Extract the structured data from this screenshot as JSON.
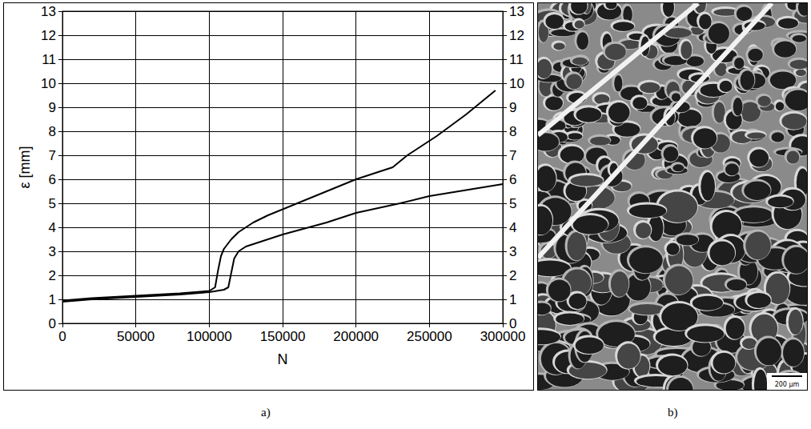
{
  "chart_data": {
    "type": "line",
    "x_label": "N",
    "y_label": "ε [mm]",
    "xlim": [
      0,
      300000
    ],
    "xticks": [
      0,
      50000,
      100000,
      150000,
      200000,
      250000,
      300000
    ],
    "ylim": [
      0,
      13
    ],
    "yticks": [
      0,
      1,
      2,
      3,
      4,
      5,
      6,
      7,
      8,
      9,
      10,
      11,
      12,
      13
    ],
    "y2lim": [
      0,
      13
    ],
    "y2ticks": [
      0,
      1,
      2,
      3,
      4,
      5,
      6,
      7,
      8,
      9,
      10,
      11,
      12,
      13
    ],
    "grid": true,
    "series": [
      {
        "color": "#000000",
        "x": [
          0,
          20000,
          50000,
          80000,
          100000,
          104000,
          106000,
          108000,
          110000,
          115000,
          120000,
          130000,
          140000,
          160000,
          180000,
          200000,
          215000,
          225000,
          235000,
          255000,
          275000,
          295000
        ],
        "values": [
          0.95,
          1.05,
          1.15,
          1.25,
          1.35,
          1.5,
          2.2,
          2.8,
          3.1,
          3.5,
          3.8,
          4.2,
          4.5,
          5.0,
          5.5,
          6.0,
          6.3,
          6.5,
          7.0,
          7.8,
          8.7,
          9.7
        ]
      },
      {
        "color": "#000000",
        "x": [
          0,
          20000,
          50000,
          80000,
          100000,
          110000,
          113000,
          115000,
          117000,
          120000,
          125000,
          130000,
          150000,
          180000,
          200000,
          230000,
          250000,
          280000,
          300000
        ],
        "values": [
          0.9,
          1.0,
          1.1,
          1.2,
          1.3,
          1.4,
          1.5,
          2.1,
          2.7,
          3.0,
          3.2,
          3.3,
          3.7,
          4.2,
          4.6,
          5.0,
          5.3,
          5.6,
          5.8
        ]
      }
    ]
  },
  "panel_labels": [
    "a)",
    "b)"
  ],
  "micrograph": {
    "scale_bar": "200 μm"
  }
}
